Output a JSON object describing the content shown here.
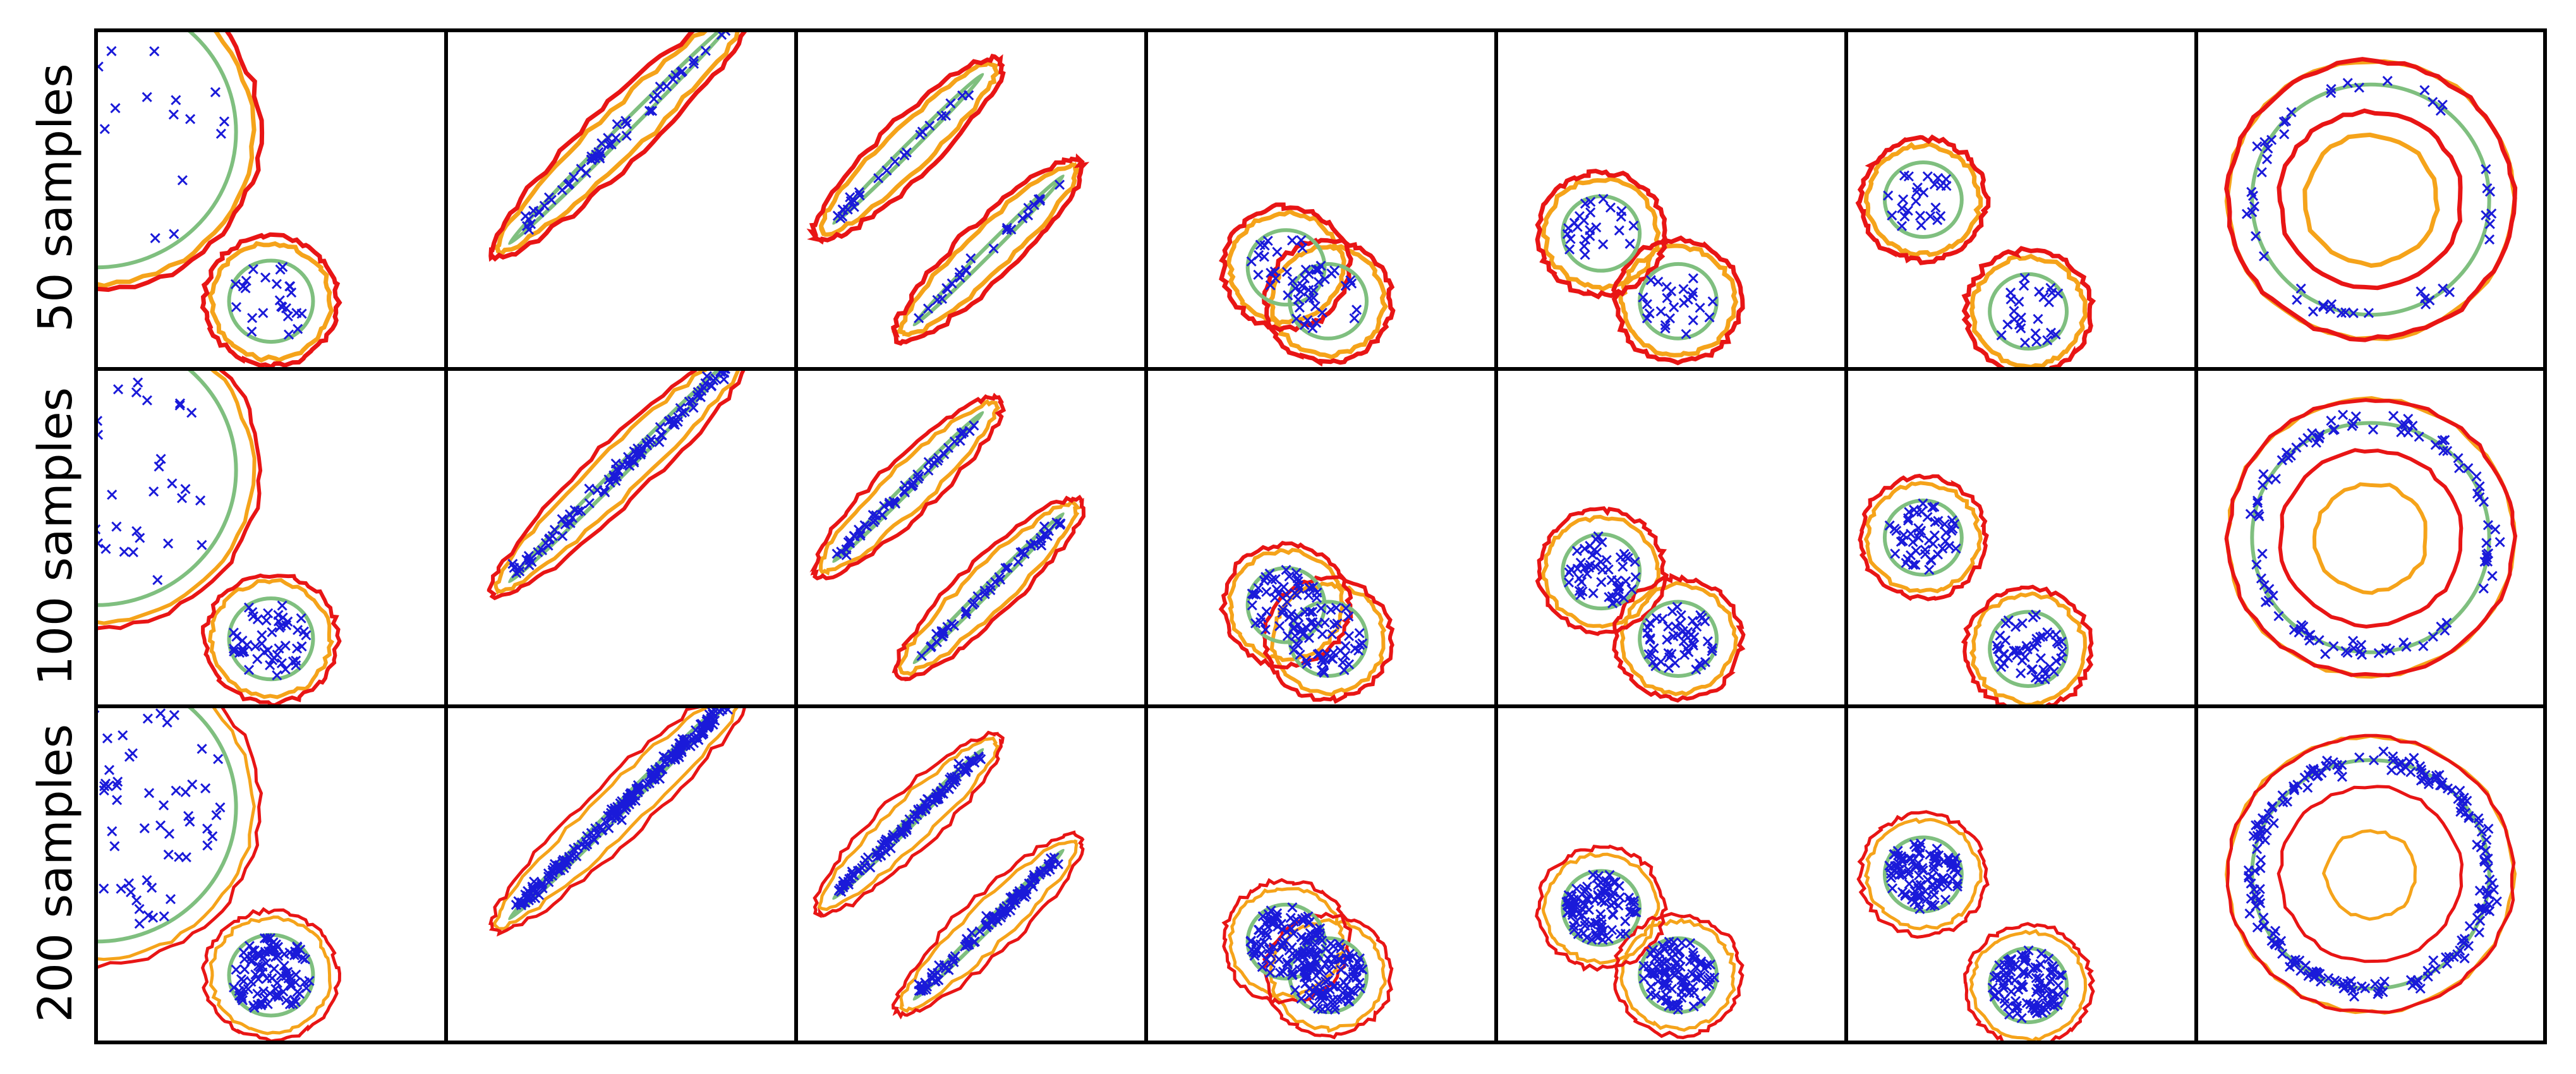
{
  "chart_data": {
    "type": "scatter",
    "title": "",
    "description_rows": [
      "50 samples",
      "100 samples",
      "200 samples"
    ],
    "rows": [
      {
        "label": "50 samples",
        "n_samples": 50
      },
      {
        "label": "100 samples",
        "n_samples": 100
      },
      {
        "label": "200 samples",
        "n_samples": 200
      }
    ],
    "xlim": [
      0,
      1
    ],
    "ylim": [
      0,
      1
    ],
    "grid": false,
    "marker": "x",
    "colors": {
      "points": "#1a1ad9",
      "true_support": "#7fbf7f",
      "outer_contour": "#e81515",
      "inner_contour": "#f5a31a",
      "frame": "#000000"
    },
    "datasets": [
      {
        "name": "two-blobs-unequal",
        "shapes": [
          {
            "kind": "circle",
            "cx": 0.0,
            "cy": 0.7,
            "r": 0.4
          },
          {
            "kind": "circle",
            "cx": 0.5,
            "cy": 0.2,
            "r": 0.12
          }
        ]
      },
      {
        "name": "single-ellipse",
        "shapes": [
          {
            "kind": "ellipse",
            "cx": 0.5,
            "cy": 0.7,
            "a": 0.45,
            "b": 0.015,
            "angle": 45
          }
        ]
      },
      {
        "name": "two-parallel-ellipses",
        "shapes": [
          {
            "kind": "ellipse",
            "cx": 0.32,
            "cy": 0.65,
            "a": 0.3,
            "b": 0.012,
            "angle": 45
          },
          {
            "kind": "ellipse",
            "cx": 0.55,
            "cy": 0.35,
            "a": 0.3,
            "b": 0.012,
            "angle": 45
          }
        ]
      },
      {
        "name": "two-overlapping-blobs",
        "shapes": [
          {
            "kind": "circle",
            "cx": 0.4,
            "cy": 0.3,
            "r": 0.11
          },
          {
            "kind": "circle",
            "cx": 0.52,
            "cy": 0.2,
            "r": 0.11
          }
        ]
      },
      {
        "name": "two-touching-blobs",
        "shapes": [
          {
            "kind": "circle",
            "cx": 0.3,
            "cy": 0.4,
            "r": 0.11
          },
          {
            "kind": "circle",
            "cx": 0.52,
            "cy": 0.2,
            "r": 0.11
          }
        ]
      },
      {
        "name": "two-separated-blobs",
        "shapes": [
          {
            "kind": "circle",
            "cx": 0.22,
            "cy": 0.5,
            "r": 0.11
          },
          {
            "kind": "circle",
            "cx": 0.52,
            "cy": 0.17,
            "r": 0.11
          }
        ]
      },
      {
        "name": "ring",
        "shapes": [
          {
            "kind": "ring",
            "cx": 0.5,
            "cy": 0.5,
            "r": 0.34
          }
        ]
      }
    ],
    "outer_margin": 0.07,
    "inner_margin": 0.05,
    "axes_ticks": "none"
  }
}
